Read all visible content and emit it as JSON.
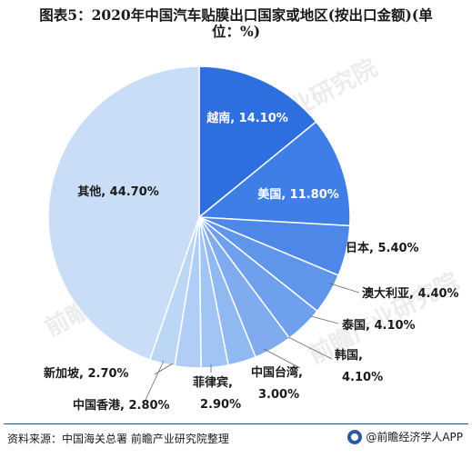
{
  "title": {
    "line1": "图表5：2020年中国汽车贴膜出口国家或地区(按出口金额)(单",
    "line2": "位：%)"
  },
  "chart_data": {
    "type": "pie",
    "start_angle_deg": 90,
    "direction": "clockwise",
    "labels": [
      "越南",
      "美国",
      "日本",
      "澳大利亚",
      "泰国",
      "韩国",
      "中国台湾",
      "菲律宾",
      "中国香港",
      "新加坡",
      "其他"
    ],
    "values": [
      14.1,
      11.8,
      5.4,
      4.4,
      4.1,
      4.1,
      3.0,
      2.9,
      2.8,
      2.7,
      44.7
    ],
    "value_labels": [
      "14.10%",
      "11.80%",
      "5.40%",
      "4.40%",
      "4.10%",
      "4.10%",
      "3.00%",
      "2.90%",
      "2.80%",
      "2.70%",
      "44.70%"
    ],
    "colors": [
      "#2e6fe0",
      "#3f7ee6",
      "#4d88e8",
      "#5f95ea",
      "#6fa0ed",
      "#80acef",
      "#90b8f1",
      "#a0c4f3",
      "#b0cef5",
      "#bcd7f6",
      "#c9ddf7"
    ]
  },
  "footer": {
    "source": "资料来源：中国海关总署 前瞻产业研究院整理",
    "brand": "@前瞻经济学人APP"
  },
  "watermark": "前瞻产业研究院"
}
